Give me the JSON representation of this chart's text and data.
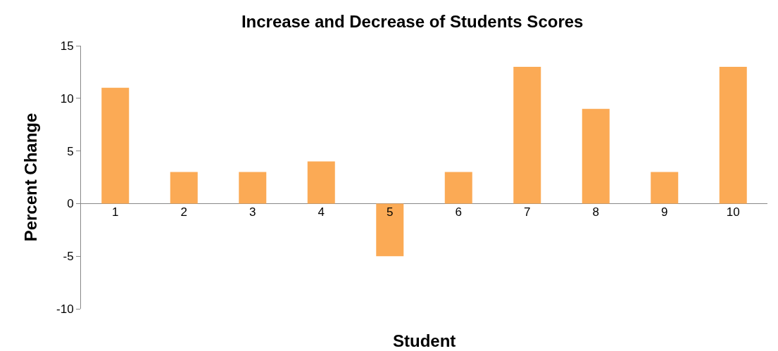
{
  "chart_data": {
    "type": "bar",
    "title": "Increase and Decrease of Students Scores",
    "xlabel": "Student",
    "ylabel": "Percent Change",
    "categories": [
      "1",
      "2",
      "3",
      "4",
      "5",
      "6",
      "7",
      "8",
      "9",
      "10"
    ],
    "values": [
      11,
      3,
      3,
      4,
      -5,
      3,
      13,
      9,
      3,
      13
    ],
    "color": "#fbaa55",
    "ylim": [
      -10,
      15
    ],
    "yticks": [
      -10,
      -5,
      0,
      5,
      10,
      15
    ],
    "grid": false,
    "legend": false
  }
}
